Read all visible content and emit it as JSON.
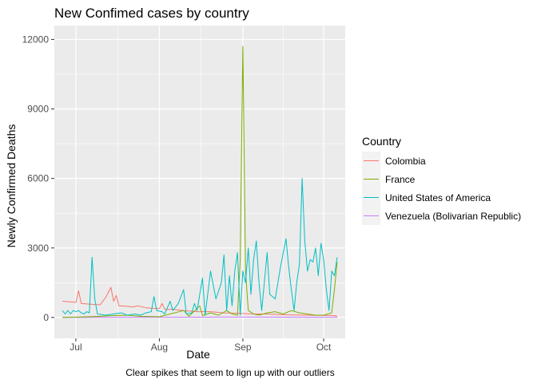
{
  "chart_data": {
    "type": "line",
    "title": "New Confimed cases by country",
    "xlabel": "Date",
    "ylabel": "Newly Confirmed Deaths",
    "caption": "Clear spikes that seem to lign up with our outliers",
    "x_axis": {
      "type": "date",
      "range": [
        "2020-06-23",
        "2020-10-09"
      ],
      "ticks": [
        {
          "date": "2020-07-01",
          "label": "Jul"
        },
        {
          "date": "2020-08-01",
          "label": "Aug"
        },
        {
          "date": "2020-09-01",
          "label": "Sep"
        },
        {
          "date": "2020-10-01",
          "label": "Oct"
        }
      ]
    },
    "y_axis": {
      "range": [
        -900,
        12600
      ],
      "ticks": [
        0,
        3000,
        6000,
        9000,
        12000
      ]
    },
    "grid": true,
    "legend": {
      "title": "Country",
      "position": "right"
    },
    "series": [
      {
        "name": "Colombia",
        "color": "#F8766D",
        "points": [
          [
            "2020-06-26",
            700
          ],
          [
            "2020-06-29",
            670
          ],
          [
            "2020-07-01",
            650
          ],
          [
            "2020-07-02",
            1150
          ],
          [
            "2020-07-03",
            600
          ],
          [
            "2020-07-08",
            560
          ],
          [
            "2020-07-10",
            550
          ],
          [
            "2020-07-12",
            850
          ],
          [
            "2020-07-14",
            1300
          ],
          [
            "2020-07-15",
            700
          ],
          [
            "2020-07-16",
            950
          ],
          [
            "2020-07-17",
            500
          ],
          [
            "2020-07-20",
            480
          ],
          [
            "2020-07-22",
            450
          ],
          [
            "2020-07-24",
            500
          ],
          [
            "2020-07-27",
            420
          ],
          [
            "2020-07-29",
            400
          ],
          [
            "2020-08-01",
            380
          ],
          [
            "2020-08-02",
            600
          ],
          [
            "2020-08-03",
            350
          ],
          [
            "2020-08-06",
            350
          ],
          [
            "2020-08-10",
            300
          ],
          [
            "2020-08-15",
            250
          ],
          [
            "2020-08-20",
            250
          ],
          [
            "2020-08-25",
            200
          ],
          [
            "2020-08-30",
            180
          ],
          [
            "2020-09-05",
            150
          ],
          [
            "2020-09-10",
            150
          ],
          [
            "2020-09-15",
            120
          ],
          [
            "2020-09-20",
            110
          ],
          [
            "2020-09-25",
            100
          ],
          [
            "2020-09-30",
            90
          ],
          [
            "2020-10-05",
            80
          ],
          [
            "2020-10-06",
            50
          ]
        ]
      },
      {
        "name": "France",
        "color": "#7CAE00",
        "points": [
          [
            "2020-06-26",
            0
          ],
          [
            "2020-07-03",
            20
          ],
          [
            "2020-07-10",
            50
          ],
          [
            "2020-07-15",
            80
          ],
          [
            "2020-07-20",
            100
          ],
          [
            "2020-07-25",
            50
          ],
          [
            "2020-08-01",
            30
          ],
          [
            "2020-08-05",
            150
          ],
          [
            "2020-08-10",
            300
          ],
          [
            "2020-08-12",
            50
          ],
          [
            "2020-08-16",
            500
          ],
          [
            "2020-08-17",
            80
          ],
          [
            "2020-08-20",
            200
          ],
          [
            "2020-08-23",
            100
          ],
          [
            "2020-08-26",
            300
          ],
          [
            "2020-08-28",
            150
          ],
          [
            "2020-08-30",
            100
          ],
          [
            "2020-08-31",
            2500
          ],
          [
            "2020-09-01",
            11700
          ],
          [
            "2020-09-02",
            2000
          ],
          [
            "2020-09-03",
            300
          ],
          [
            "2020-09-05",
            150
          ],
          [
            "2020-09-07",
            100
          ],
          [
            "2020-09-10",
            200
          ],
          [
            "2020-09-13",
            250
          ],
          [
            "2020-09-16",
            150
          ],
          [
            "2020-09-19",
            300
          ],
          [
            "2020-09-22",
            200
          ],
          [
            "2020-09-25",
            150
          ],
          [
            "2020-09-28",
            100
          ],
          [
            "2020-10-01",
            100
          ],
          [
            "2020-10-04",
            200
          ],
          [
            "2020-10-05",
            1200
          ],
          [
            "2020-10-06",
            2400
          ]
        ]
      },
      {
        "name": "United States of America",
        "color": "#00BFC4",
        "points": [
          [
            "2020-06-26",
            300
          ],
          [
            "2020-06-27",
            150
          ],
          [
            "2020-06-28",
            300
          ],
          [
            "2020-06-29",
            150
          ],
          [
            "2020-06-30",
            300
          ],
          [
            "2020-07-01",
            250
          ],
          [
            "2020-07-02",
            300
          ],
          [
            "2020-07-03",
            200
          ],
          [
            "2020-07-04",
            150
          ],
          [
            "2020-07-05",
            250
          ],
          [
            "2020-07-06",
            200
          ],
          [
            "2020-07-07",
            2600
          ],
          [
            "2020-07-08",
            800
          ],
          [
            "2020-07-09",
            150
          ],
          [
            "2020-07-12",
            100
          ],
          [
            "2020-07-15",
            150
          ],
          [
            "2020-07-18",
            200
          ],
          [
            "2020-07-20",
            100
          ],
          [
            "2020-07-23",
            150
          ],
          [
            "2020-07-25",
            100
          ],
          [
            "2020-07-27",
            200
          ],
          [
            "2020-07-29",
            250
          ],
          [
            "2020-07-30",
            900
          ],
          [
            "2020-07-31",
            300
          ],
          [
            "2020-08-02",
            250
          ],
          [
            "2020-08-03",
            150
          ],
          [
            "2020-08-05",
            700
          ],
          [
            "2020-08-06",
            300
          ],
          [
            "2020-08-08",
            600
          ],
          [
            "2020-08-10",
            1200
          ],
          [
            "2020-08-11",
            150
          ],
          [
            "2020-08-13",
            200
          ],
          [
            "2020-08-14",
            600
          ],
          [
            "2020-08-15",
            300
          ],
          [
            "2020-08-17",
            1700
          ],
          [
            "2020-08-18",
            100
          ],
          [
            "2020-08-20",
            2000
          ],
          [
            "2020-08-22",
            800
          ],
          [
            "2020-08-24",
            1500
          ],
          [
            "2020-08-25",
            2700
          ],
          [
            "2020-08-26",
            300
          ],
          [
            "2020-08-27",
            1800
          ],
          [
            "2020-08-28",
            500
          ],
          [
            "2020-08-29",
            2000
          ],
          [
            "2020-08-30",
            2800
          ],
          [
            "2020-08-31",
            100
          ],
          [
            "2020-09-01",
            2000
          ],
          [
            "2020-09-02",
            1500
          ],
          [
            "2020-09-03",
            3000
          ],
          [
            "2020-09-04",
            1000
          ],
          [
            "2020-09-05",
            2500
          ],
          [
            "2020-09-06",
            3300
          ],
          [
            "2020-09-07",
            1500
          ],
          [
            "2020-09-08",
            300
          ],
          [
            "2020-09-10",
            2800
          ],
          [
            "2020-09-11",
            1000
          ],
          [
            "2020-09-13",
            800
          ],
          [
            "2020-09-15",
            2200
          ],
          [
            "2020-09-17",
            3400
          ],
          [
            "2020-09-18",
            2200
          ],
          [
            "2020-09-19",
            1200
          ],
          [
            "2020-09-20",
            300
          ],
          [
            "2020-09-21",
            1500
          ],
          [
            "2020-09-22",
            2300
          ],
          [
            "2020-09-23",
            6000
          ],
          [
            "2020-09-24",
            3300
          ],
          [
            "2020-09-25",
            2000
          ],
          [
            "2020-09-26",
            2500
          ],
          [
            "2020-09-27",
            2400
          ],
          [
            "2020-09-28",
            3000
          ],
          [
            "2020-09-29",
            1800
          ],
          [
            "2020-09-30",
            3200
          ],
          [
            "2020-10-01",
            2500
          ],
          [
            "2020-10-02",
            1200
          ],
          [
            "2020-10-03",
            300
          ],
          [
            "2020-10-04",
            2000
          ],
          [
            "2020-10-05",
            1800
          ],
          [
            "2020-10-06",
            2600
          ]
        ]
      },
      {
        "name": "Venezuela (Bolivarian Republic)",
        "color": "#C77CFF",
        "points": [
          [
            "2020-06-26",
            5
          ],
          [
            "2020-07-05",
            5
          ],
          [
            "2020-07-15",
            8
          ],
          [
            "2020-07-25",
            10
          ],
          [
            "2020-08-05",
            10
          ],
          [
            "2020-08-15",
            12
          ],
          [
            "2020-08-25",
            15
          ],
          [
            "2020-09-05",
            15
          ],
          [
            "2020-09-15",
            12
          ],
          [
            "2020-09-25",
            10
          ],
          [
            "2020-10-06",
            10
          ]
        ]
      }
    ]
  }
}
